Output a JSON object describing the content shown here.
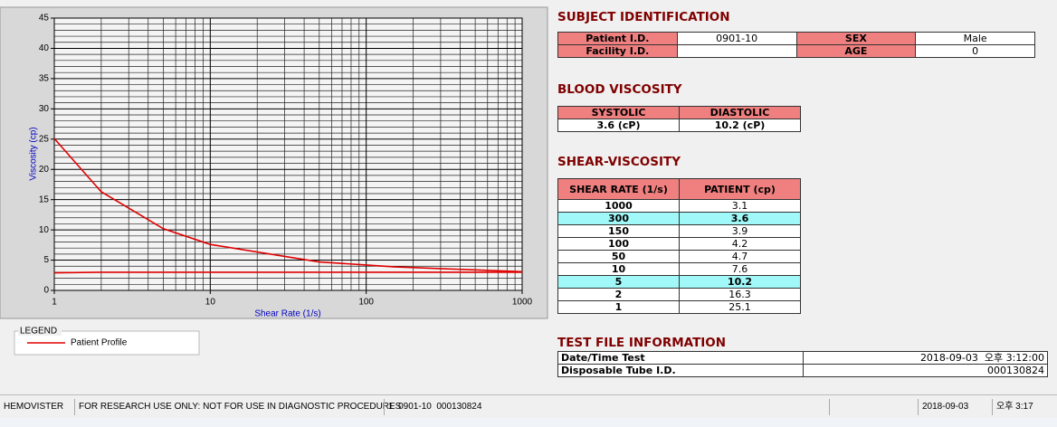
{
  "chart_data": {
    "type": "line",
    "x_label": "Shear Rate (1/s)",
    "y_label": "Viscosity (cp)",
    "log_x": true,
    "grid": true,
    "minor_grid": true,
    "xlim": [
      1,
      1000
    ],
    "xticks": [
      1,
      10,
      100,
      1000
    ],
    "ylim": [
      0,
      45
    ],
    "yticks": [
      0,
      5,
      10,
      15,
      20,
      25,
      30,
      35,
      40,
      45
    ],
    "legend_title": "LEGEND",
    "series": [
      {
        "name": "Patient Profile",
        "color": "#e00000",
        "x": [
          1,
          2,
          5,
          10,
          50,
          100,
          150,
          300,
          1000
        ],
        "values": [
          25.1,
          16.3,
          10.2,
          7.6,
          4.7,
          4.2,
          3.9,
          3.6,
          3.1
        ]
      },
      {
        "color": "#e00000",
        "x": [
          1,
          2,
          1000
        ],
        "values": [
          2.9,
          3.0,
          3.0
        ]
      }
    ]
  },
  "subject_identification": {
    "title": "SUBJECT IDENTIFICATION",
    "rows": [
      [
        "Patient I.D.",
        "0901-10",
        "SEX",
        "Male"
      ],
      [
        "Facility I.D.",
        null,
        "AGE",
        0
      ]
    ]
  },
  "blood_viscosity": {
    "title": "BLOOD VISCOSITY",
    "headers": [
      "SYSTOLIC",
      "DIASTOLIC"
    ],
    "values": [
      "3.6 (cP)",
      "10.2 (cP)"
    ]
  },
  "shear_viscosity": {
    "title": "SHEAR-VISCOSITY",
    "headers": [
      "SHEAR RATE (1/s)",
      "PATIENT (cp)"
    ],
    "highlight": [
      1,
      6
    ],
    "rows": [
      [
        1000,
        3.1
      ],
      [
        300,
        3.6
      ],
      [
        150,
        3.9
      ],
      [
        100,
        4.2
      ],
      [
        50,
        4.7
      ],
      [
        10,
        7.6
      ],
      [
        5,
        10.2
      ],
      [
        2,
        16.3
      ],
      [
        1,
        25.1
      ]
    ]
  },
  "test_file_information": {
    "title": "TEST FILE INFORMATION",
    "rows": [
      [
        "Date/Time Test",
        "2018-09-03  오후 3:12:00"
      ],
      [
        "Disposable Tube I.D.",
        "000130824"
      ]
    ]
  },
  "status_bar": [
    "HEMOVISTER",
    "FOR RESEARCH USE ONLY: NOT FOR USE IN DIAGNOSTIC PROCEDURES",
    "1  0901-10  000130824",
    "2018-09-03",
    "오후 3:17"
  ]
}
